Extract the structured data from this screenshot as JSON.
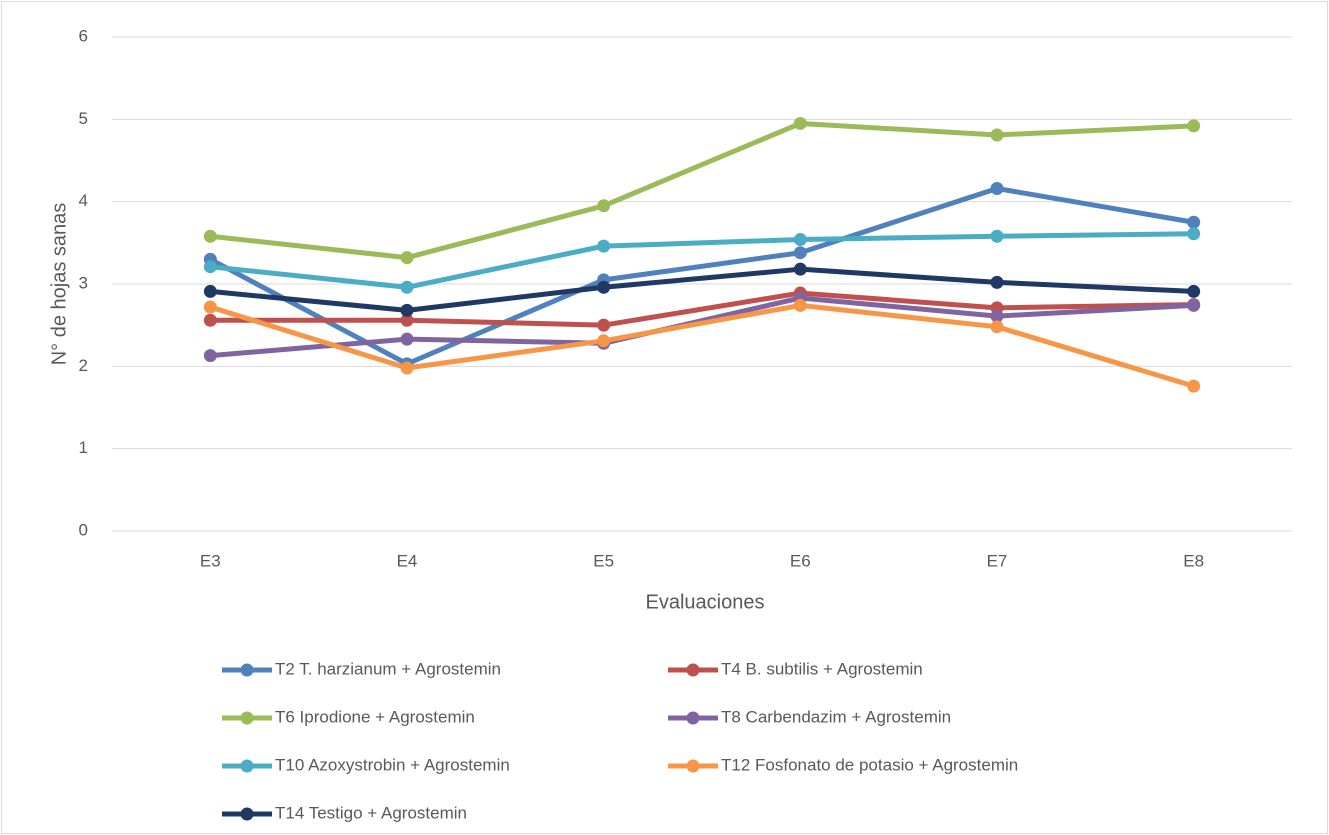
{
  "chart_data": {
    "type": "line",
    "x_label": "Evaluaciones",
    "y_label": "N° de hojas sanas",
    "categories": [
      "E3",
      "E4",
      "E5",
      "E6",
      "E7",
      "E8"
    ],
    "ylim": [
      0,
      6
    ],
    "yticks": [
      0,
      1,
      2,
      3,
      4,
      5,
      6
    ],
    "grid": true,
    "series": [
      {
        "name": "T2 T. harzianum + Agrostemin",
        "color": "#4f81bd",
        "values": [
          3.3,
          2.03,
          3.05,
          3.38,
          4.16,
          3.75
        ]
      },
      {
        "name": "T4 B. subtilis + Agrostemin",
        "color": "#c0504d",
        "values": [
          2.56,
          2.56,
          2.5,
          2.89,
          2.71,
          2.75
        ]
      },
      {
        "name": "T6 Iprodione + Agrostemin",
        "color": "#9bbb59",
        "values": [
          3.58,
          3.32,
          3.95,
          4.95,
          4.81,
          4.92
        ]
      },
      {
        "name": "T8 Carbendazim + Agrostemin",
        "color": "#8064a2",
        "values": [
          2.13,
          2.33,
          2.28,
          2.83,
          2.61,
          2.74
        ]
      },
      {
        "name": "T10 Azoxystrobin + Agrostemin",
        "color": "#4bacc6",
        "values": [
          3.21,
          2.96,
          3.46,
          3.54,
          3.58,
          3.61
        ]
      },
      {
        "name": "T12 Fosfonato de potasio + Agrostemin",
        "color": "#f79646",
        "values": [
          2.72,
          1.98,
          2.31,
          2.74,
          2.48,
          1.76
        ]
      },
      {
        "name": "T14 Testigo + Agrostemin",
        "color": "#1f3864",
        "values": [
          2.91,
          2.68,
          2.96,
          3.18,
          3.02,
          2.91
        ]
      }
    ]
  }
}
